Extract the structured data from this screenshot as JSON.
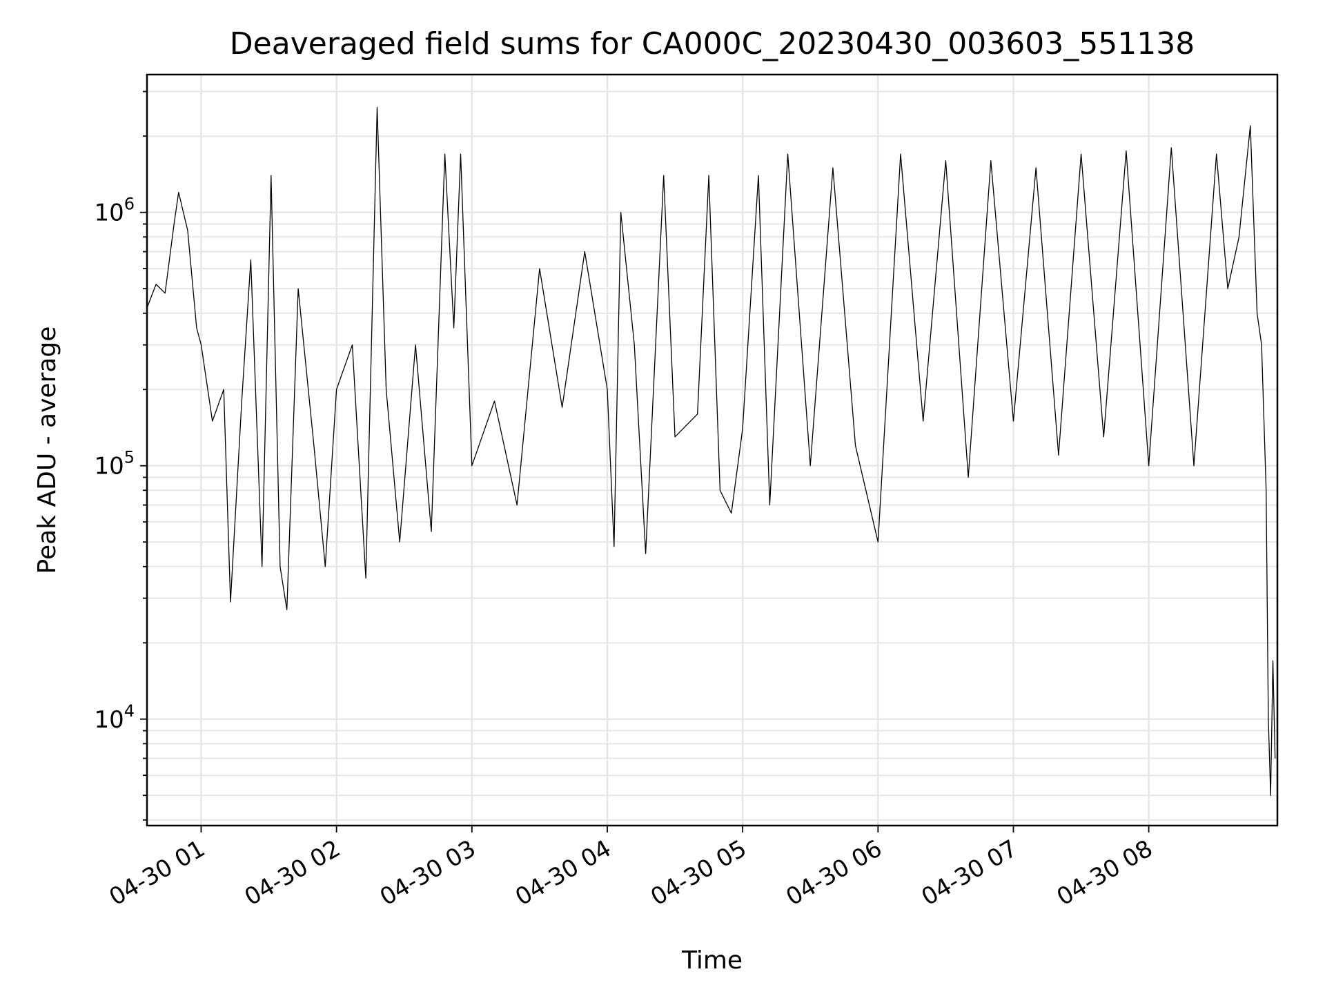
{
  "chart_data": {
    "type": "line",
    "title": "Deaveraged field sums for CA000C_20230430_003603_551138",
    "xlabel": "Time",
    "ylabel": "Peak ADU - average",
    "yscale": "log",
    "xlim": [
      "2023-04-30T00:36",
      "2023-04-30T08:57"
    ],
    "ylim": [
      3800,
      3500000
    ],
    "grid": true,
    "line_color": "#000000",
    "x_ticks": [
      {
        "value": "2023-04-30T01:00",
        "label": "04-30 01"
      },
      {
        "value": "2023-04-30T02:00",
        "label": "04-30 02"
      },
      {
        "value": "2023-04-30T03:00",
        "label": "04-30 03"
      },
      {
        "value": "2023-04-30T04:00",
        "label": "04-30 04"
      },
      {
        "value": "2023-04-30T05:00",
        "label": "04-30 05"
      },
      {
        "value": "2023-04-30T06:00",
        "label": "04-30 06"
      },
      {
        "value": "2023-04-30T07:00",
        "label": "04-30 07"
      },
      {
        "value": "2023-04-30T08:00",
        "label": "04-30 08"
      }
    ],
    "y_ticks": [
      {
        "value": 10000,
        "base": "10",
        "exp": "4"
      },
      {
        "value": 100000,
        "base": "10",
        "exp": "5"
      },
      {
        "value": 1000000,
        "base": "10",
        "exp": "6"
      }
    ],
    "series": [
      {
        "points": [
          [
            "2023-04-30T00:36",
            420000
          ],
          [
            "2023-04-30T00:40",
            520000
          ],
          [
            "2023-04-30T00:44",
            480000
          ],
          [
            "2023-04-30T00:48",
            900000
          ],
          [
            "2023-04-30T00:50",
            1200000
          ],
          [
            "2023-04-30T00:54",
            850000
          ],
          [
            "2023-04-30T00:58",
            350000
          ],
          [
            "2023-04-30T01:00",
            300000
          ],
          [
            "2023-04-30T01:05",
            150000
          ],
          [
            "2023-04-30T01:10",
            200000
          ],
          [
            "2023-04-30T01:13",
            29000
          ],
          [
            "2023-04-30T01:18",
            180000
          ],
          [
            "2023-04-30T01:22",
            650000
          ],
          [
            "2023-04-30T01:27",
            40000
          ],
          [
            "2023-04-30T01:31",
            1400000
          ],
          [
            "2023-04-30T01:35",
            40000
          ],
          [
            "2023-04-30T01:38",
            27000
          ],
          [
            "2023-04-30T01:43",
            500000
          ],
          [
            "2023-04-30T01:50",
            120000
          ],
          [
            "2023-04-30T01:55",
            40000
          ],
          [
            "2023-04-30T02:00",
            200000
          ],
          [
            "2023-04-30T02:07",
            300000
          ],
          [
            "2023-04-30T02:13",
            36000
          ],
          [
            "2023-04-30T02:18",
            2600000
          ],
          [
            "2023-04-30T02:22",
            200000
          ],
          [
            "2023-04-30T02:28",
            50000
          ],
          [
            "2023-04-30T02:35",
            300000
          ],
          [
            "2023-04-30T02:42",
            55000
          ],
          [
            "2023-04-30T02:48",
            1700000
          ],
          [
            "2023-04-30T02:52",
            350000
          ],
          [
            "2023-04-30T02:55",
            1700000
          ],
          [
            "2023-04-30T03:00",
            100000
          ],
          [
            "2023-04-30T03:10",
            180000
          ],
          [
            "2023-04-30T03:20",
            70000
          ],
          [
            "2023-04-30T03:30",
            600000
          ],
          [
            "2023-04-30T03:40",
            170000
          ],
          [
            "2023-04-30T03:50",
            700000
          ],
          [
            "2023-04-30T04:00",
            200000
          ],
          [
            "2023-04-30T04:03",
            48000
          ],
          [
            "2023-04-30T04:06",
            1000000
          ],
          [
            "2023-04-30T04:12",
            300000
          ],
          [
            "2023-04-30T04:17",
            45000
          ],
          [
            "2023-04-30T04:25",
            1400000
          ],
          [
            "2023-04-30T04:30",
            130000
          ],
          [
            "2023-04-30T04:40",
            160000
          ],
          [
            "2023-04-30T04:45",
            1400000
          ],
          [
            "2023-04-30T04:50",
            80000
          ],
          [
            "2023-04-30T04:55",
            65000
          ],
          [
            "2023-04-30T05:00",
            140000
          ],
          [
            "2023-04-30T05:07",
            1400000
          ],
          [
            "2023-04-30T05:12",
            70000
          ],
          [
            "2023-04-30T05:20",
            1700000
          ],
          [
            "2023-04-30T05:30",
            100000
          ],
          [
            "2023-04-30T05:40",
            1500000
          ],
          [
            "2023-04-30T05:50",
            120000
          ],
          [
            "2023-04-30T06:00",
            50000
          ],
          [
            "2023-04-30T06:10",
            1700000
          ],
          [
            "2023-04-30T06:20",
            150000
          ],
          [
            "2023-04-30T06:30",
            1600000
          ],
          [
            "2023-04-30T06:40",
            90000
          ],
          [
            "2023-04-30T06:50",
            1600000
          ],
          [
            "2023-04-30T07:00",
            150000
          ],
          [
            "2023-04-30T07:10",
            1500000
          ],
          [
            "2023-04-30T07:20",
            110000
          ],
          [
            "2023-04-30T07:30",
            1700000
          ],
          [
            "2023-04-30T07:40",
            130000
          ],
          [
            "2023-04-30T07:50",
            1750000
          ],
          [
            "2023-04-30T08:00",
            100000
          ],
          [
            "2023-04-30T08:10",
            1800000
          ],
          [
            "2023-04-30T08:20",
            100000
          ],
          [
            "2023-04-30T08:30",
            1700000
          ],
          [
            "2023-04-30T08:35",
            500000
          ],
          [
            "2023-04-30T08:40",
            800000
          ],
          [
            "2023-04-30T08:45",
            2200000
          ],
          [
            "2023-04-30T08:48",
            400000
          ],
          [
            "2023-04-30T08:50",
            300000
          ],
          [
            "2023-04-30T08:52",
            80000
          ],
          [
            "2023-04-30T08:53",
            10000
          ],
          [
            "2023-04-30T08:54",
            5000
          ],
          [
            "2023-04-30T08:55",
            17000
          ],
          [
            "2023-04-30T08:56",
            7000
          ]
        ]
      }
    ]
  }
}
